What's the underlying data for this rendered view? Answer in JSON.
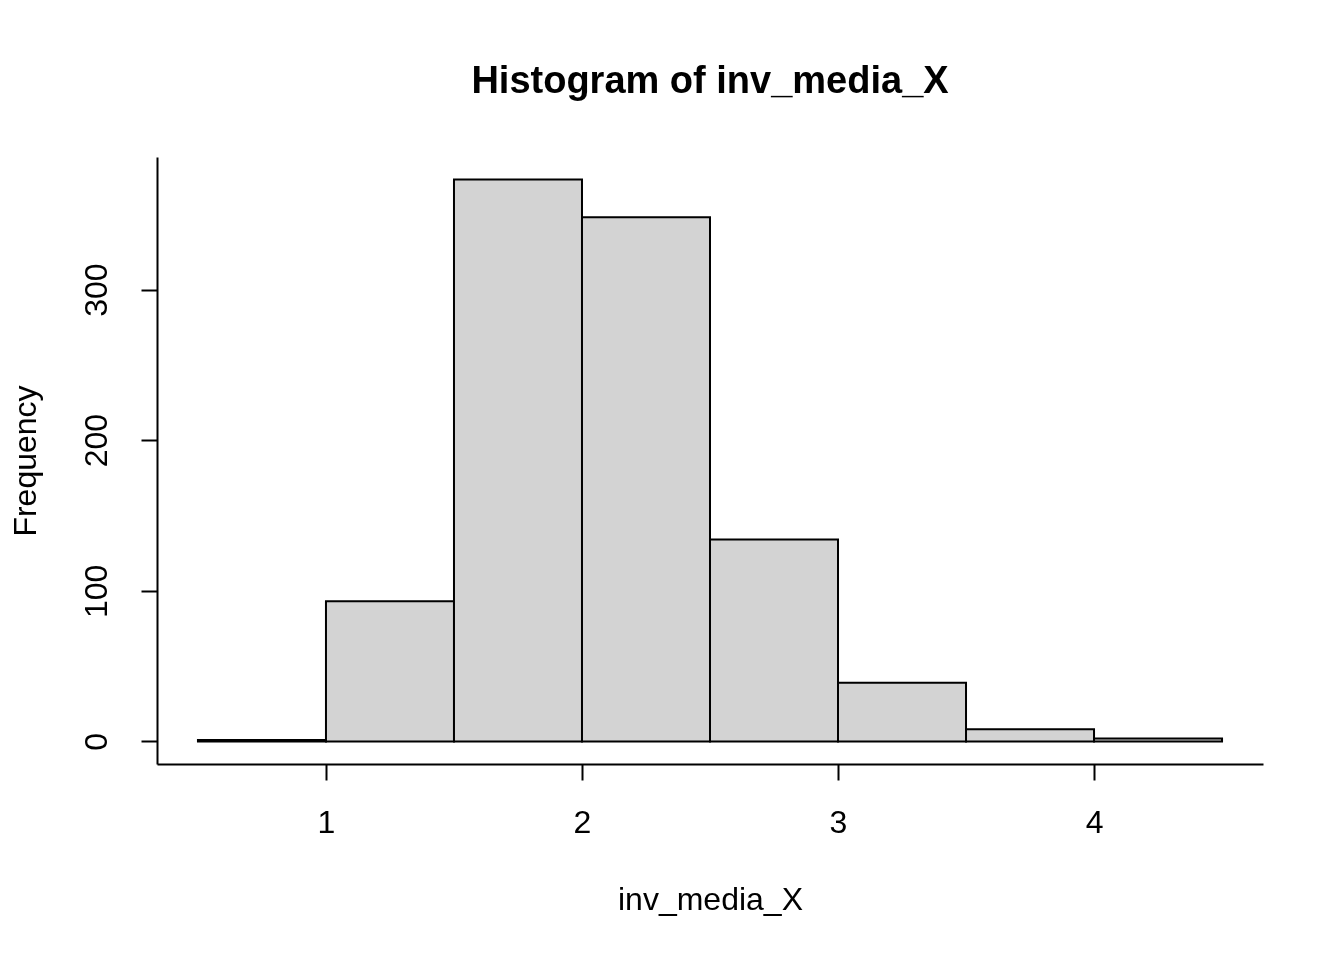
{
  "chart_data": {
    "type": "histogram",
    "title": "Histogram of inv_media_X",
    "xlabel": "inv_media_X",
    "ylabel": "Frequency",
    "bins": [
      0.5,
      1,
      1.5,
      2,
      2.5,
      3,
      3.5,
      4,
      4.5
    ],
    "values": [
      1,
      93,
      373,
      348,
      134,
      39,
      8,
      2
    ],
    "color": "#d3d3d3",
    "xlim": [
      0.34,
      4.66
    ],
    "ylim": [
      -15,
      388
    ],
    "xticks": [
      1,
      2,
      3,
      4
    ],
    "yticks": [
      0,
      100,
      200,
      300
    ]
  }
}
